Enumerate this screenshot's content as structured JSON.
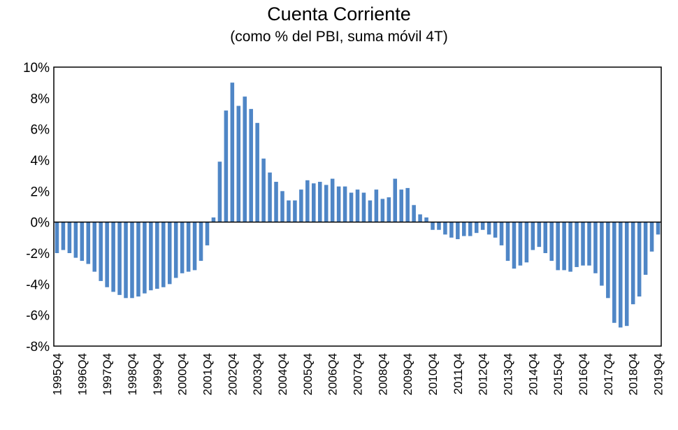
{
  "chart_data": {
    "type": "bar",
    "title": "Cuenta Corriente",
    "subtitle": "(como % del PBI, suma móvil 4T)",
    "xlabel": "",
    "ylabel": "",
    "ylim": [
      -8,
      10
    ],
    "yticks": [
      "10%",
      "8%",
      "6%",
      "4%",
      "2%",
      "0%",
      "-2%",
      "-4%",
      "-6%",
      "-8%"
    ],
    "grid": false,
    "legend": "none",
    "color": "#4f86c6",
    "tick_labels": [
      "1995Q4",
      "1996Q4",
      "1997Q4",
      "1998Q4",
      "1999Q4",
      "2000Q4",
      "2001Q4",
      "2002Q4",
      "2003Q4",
      "2004Q4",
      "2005Q4",
      "2006Q4",
      "2007Q4",
      "2008Q4",
      "2009Q4",
      "2010Q4",
      "2011Q4",
      "2012Q4",
      "2013Q4",
      "2014Q4",
      "2015Q4",
      "2016Q4",
      "2017Q4",
      "2018Q4",
      "2019Q4"
    ],
    "categories": [
      "1995Q4",
      "1996Q1",
      "1996Q2",
      "1996Q3",
      "1996Q4",
      "1997Q1",
      "1997Q2",
      "1997Q3",
      "1997Q4",
      "1998Q1",
      "1998Q2",
      "1998Q3",
      "1998Q4",
      "1999Q1",
      "1999Q2",
      "1999Q3",
      "1999Q4",
      "2000Q1",
      "2000Q2",
      "2000Q3",
      "2000Q4",
      "2001Q1",
      "2001Q2",
      "2001Q3",
      "2001Q4",
      "2002Q1",
      "2002Q2",
      "2002Q3",
      "2002Q4",
      "2003Q1",
      "2003Q2",
      "2003Q3",
      "2003Q4",
      "2004Q1",
      "2004Q2",
      "2004Q3",
      "2004Q4",
      "2005Q1",
      "2005Q2",
      "2005Q3",
      "2005Q4",
      "2006Q1",
      "2006Q2",
      "2006Q3",
      "2006Q4",
      "2007Q1",
      "2007Q2",
      "2007Q3",
      "2007Q4",
      "2008Q1",
      "2008Q2",
      "2008Q3",
      "2008Q4",
      "2009Q1",
      "2009Q2",
      "2009Q3",
      "2009Q4",
      "2010Q1",
      "2010Q2",
      "2010Q3",
      "2010Q4",
      "2011Q1",
      "2011Q2",
      "2011Q3",
      "2011Q4",
      "2012Q1",
      "2012Q2",
      "2012Q3",
      "2012Q4",
      "2013Q1",
      "2013Q2",
      "2013Q3",
      "2013Q4",
      "2014Q1",
      "2014Q2",
      "2014Q3",
      "2014Q4",
      "2015Q1",
      "2015Q2",
      "2015Q3",
      "2015Q4",
      "2016Q1",
      "2016Q2",
      "2016Q3",
      "2016Q4",
      "2017Q1",
      "2017Q2",
      "2017Q3",
      "2017Q4",
      "2018Q1",
      "2018Q2",
      "2018Q3",
      "2018Q4",
      "2019Q1",
      "2019Q2",
      "2019Q3",
      "2019Q4"
    ],
    "values": [
      -2.0,
      -1.8,
      -2.0,
      -2.3,
      -2.5,
      -2.7,
      -3.2,
      -3.8,
      -4.2,
      -4.5,
      -4.7,
      -4.9,
      -4.9,
      -4.8,
      -4.6,
      -4.4,
      -4.3,
      -4.2,
      -4.0,
      -3.6,
      -3.3,
      -3.2,
      -3.1,
      -2.5,
      -1.5,
      0.3,
      3.9,
      7.2,
      9.0,
      7.5,
      8.1,
      7.3,
      6.4,
      4.1,
      3.2,
      2.6,
      2.0,
      1.4,
      1.4,
      2.1,
      2.7,
      2.5,
      2.6,
      2.4,
      2.8,
      2.3,
      2.3,
      1.9,
      2.1,
      1.9,
      1.4,
      2.1,
      1.5,
      1.6,
      2.8,
      2.1,
      2.2,
      1.1,
      0.5,
      0.3,
      -0.5,
      -0.5,
      -0.8,
      -1.0,
      -1.1,
      -0.9,
      -0.9,
      -0.7,
      -0.5,
      -0.8,
      -1.0,
      -1.5,
      -2.5,
      -3.0,
      -2.8,
      -2.6,
      -1.8,
      -1.6,
      -2.0,
      -2.5,
      -3.1,
      -3.1,
      -3.2,
      -2.9,
      -2.8,
      -2.8,
      -3.3,
      -4.1,
      -4.9,
      -6.5,
      -6.8,
      -6.7,
      -5.3,
      -4.8,
      -3.4,
      -1.9,
      -0.8
    ]
  }
}
